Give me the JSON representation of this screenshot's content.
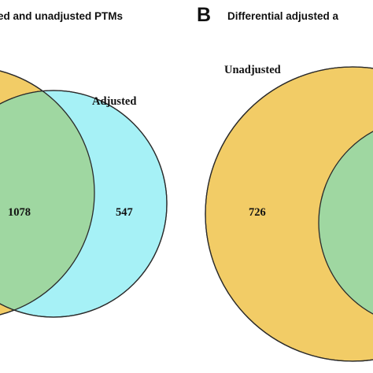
{
  "colors": {
    "unadjusted_fill": "#f2cc66",
    "adjusted_fill_panel_a": "#a6f1f6",
    "overlap_fill": "#9fd7a1",
    "outline": "#2b2b2b"
  },
  "panel_a": {
    "title": "ed and unadjusted PTMs",
    "sets": {
      "adjusted_label": "Adjusted"
    },
    "counts": {
      "overlap": "1078",
      "adjusted_only": "547"
    }
  },
  "panel_b": {
    "letter": "B",
    "title": "Differential adjusted a",
    "sets": {
      "unadjusted_label": "Unadjusted"
    },
    "counts": {
      "unadjusted_only": "726"
    }
  }
}
